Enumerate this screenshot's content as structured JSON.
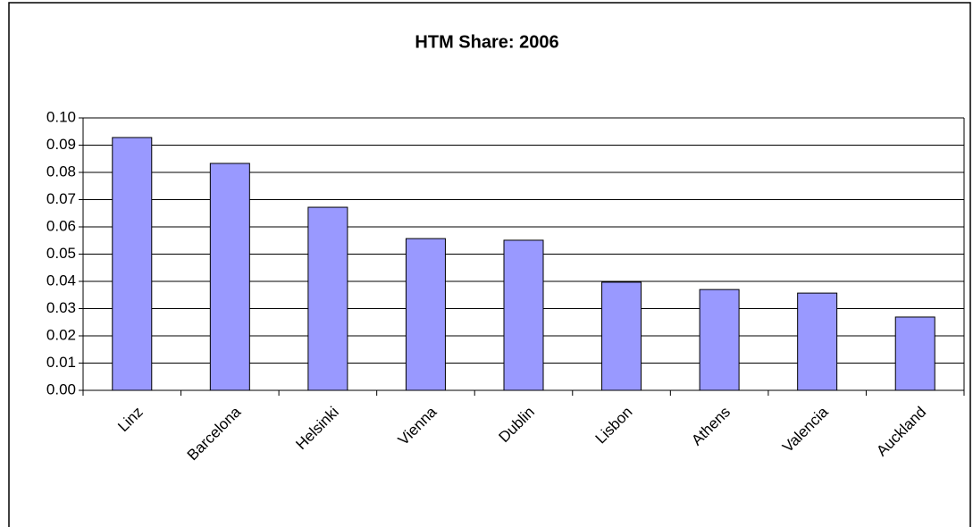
{
  "chart_data": {
    "type": "bar",
    "title": "HTM Share: 2006",
    "categories": [
      "Linz",
      "Barcelona",
      "Helsinki",
      "Vienna",
      "Dublin",
      "Lisbon",
      "Athens",
      "Valencia",
      "Auckland"
    ],
    "values": [
      0.0928,
      0.0833,
      0.0672,
      0.0557,
      0.0551,
      0.0397,
      0.037,
      0.0357,
      0.0269
    ],
    "color": "#9999ff",
    "ylim": [
      0,
      0.1
    ],
    "yticks": [
      {
        "value": 0,
        "label": "0.00"
      },
      {
        "value": 0.01,
        "label": "0.01"
      },
      {
        "value": 0.02,
        "label": "0.02"
      },
      {
        "value": 0.03,
        "label": "0.03"
      },
      {
        "value": 0.04,
        "label": "0.04"
      },
      {
        "value": 0.05,
        "label": "0.05"
      },
      {
        "value": 0.06,
        "label": "0.06"
      },
      {
        "value": 0.07,
        "label": "0.07"
      },
      {
        "value": 0.08,
        "label": "0.08"
      },
      {
        "value": 0.09,
        "label": "0.09"
      },
      {
        "value": 0.1,
        "label": "0.10"
      }
    ],
    "grid": true
  }
}
